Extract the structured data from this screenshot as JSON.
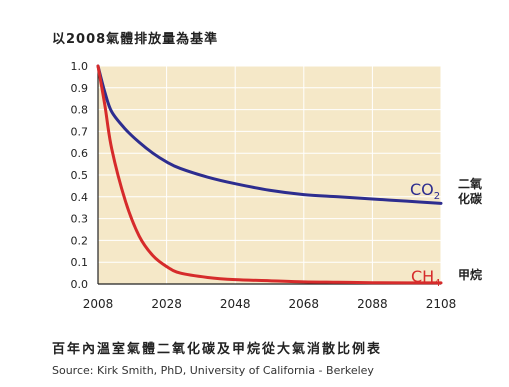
{
  "chart_data": {
    "type": "line",
    "title": "以2008氣體排放量為基準",
    "caption": "百年內溫室氣體二氧化碳及甲烷從大氣消散比例表",
    "source": "Source:  Kirk Smith, PhD, University of California - Berkeley",
    "xlim": [
      2008,
      2108
    ],
    "ylim": [
      0,
      1.0
    ],
    "x_ticks": [
      "2008",
      "2028",
      "2048",
      "2068",
      "2088",
      "2108"
    ],
    "y_ticks": [
      "0.0",
      "0.1",
      "0.2",
      "0.3",
      "0.4",
      "0.5",
      "0.6",
      "0.7",
      "0.8",
      "0.9",
      "1.0"
    ],
    "grid": true,
    "x": [
      2008,
      2010,
      2012,
      2016,
      2020,
      2024,
      2028,
      2032,
      2040,
      2048,
      2058,
      2068,
      2078,
      2088,
      2098,
      2108
    ],
    "series": [
      {
        "name": "CO2",
        "name_sub": "2",
        "name_base": "CO",
        "label_cn": "二氧化碳",
        "label_cn_1": "二氧",
        "label_cn_2": "化碳",
        "color": "#2d2d8f",
        "values": [
          1.0,
          0.88,
          0.79,
          0.71,
          0.65,
          0.6,
          0.56,
          0.53,
          0.49,
          0.46,
          0.43,
          0.41,
          0.4,
          0.39,
          0.38,
          0.37
        ]
      },
      {
        "name": "CH4",
        "name_sub": "4",
        "name_base": "CH",
        "label_cn": "甲烷",
        "color": "#d62b2b",
        "values": [
          1.0,
          0.82,
          0.62,
          0.38,
          0.22,
          0.13,
          0.08,
          0.05,
          0.03,
          0.02,
          0.015,
          0.01,
          0.008,
          0.006,
          0.005,
          0.005
        ]
      }
    ]
  },
  "colors": {
    "plot_bg": "#f5e8c8",
    "grid": "#ffffff"
  }
}
